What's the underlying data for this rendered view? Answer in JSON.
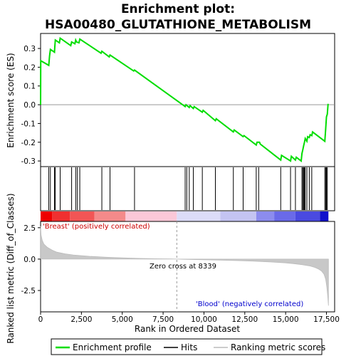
{
  "chart_data": {
    "type": "line",
    "title_line1": "Enrichment plot:",
    "title_line2": "HSA00480_GLUTATHIONE_METABOLISM",
    "es_panel": {
      "ylabel": "Enrichment score (ES)",
      "ylim": [
        -0.33,
        0.38
      ],
      "yticks": [
        0.3,
        0.2,
        0.1,
        0.0,
        -0.1,
        -0.2,
        -0.3
      ],
      "ytick_labels": [
        "0.3",
        "0.2",
        "0.1",
        "0.0",
        "-0.1",
        "-0.2",
        "-0.3"
      ],
      "series": [
        {
          "name": "Enrichment profile",
          "color": "#00dd00",
          "x": [
            0,
            10,
            500,
            550,
            600,
            850,
            870,
            900,
            1150,
            1200,
            1850,
            1900,
            2100,
            2150,
            2200,
            2350,
            2400,
            3700,
            3750,
            4200,
            4250,
            5700,
            5750,
            8850,
            8900,
            9100,
            9150,
            9350,
            9400,
            9900,
            9950,
            10700,
            10750,
            11800,
            11850,
            12400,
            12450,
            13200,
            13250,
            13400,
            13450,
            14700,
            14750,
            15300,
            15350,
            15600,
            15650,
            15950,
            16000,
            16050,
            16100,
            16150,
            16200,
            16300,
            16350,
            16450,
            16500,
            16600,
            16650,
            17400,
            17450,
            17500,
            17550,
            17600
          ],
          "y": [
            0.0,
            0.235,
            0.21,
            0.26,
            0.295,
            0.28,
            0.31,
            0.345,
            0.33,
            0.355,
            0.315,
            0.335,
            0.325,
            0.345,
            0.335,
            0.33,
            0.35,
            0.275,
            0.285,
            0.255,
            0.265,
            0.18,
            0.185,
            -0.01,
            0.0,
            -0.015,
            -0.005,
            -0.02,
            -0.01,
            -0.04,
            -0.03,
            -0.085,
            -0.075,
            -0.145,
            -0.135,
            -0.17,
            -0.165,
            -0.215,
            -0.2,
            -0.2,
            -0.21,
            -0.295,
            -0.27,
            -0.3,
            -0.275,
            -0.295,
            -0.28,
            -0.3,
            -0.26,
            -0.24,
            -0.22,
            -0.2,
            -0.18,
            -0.195,
            -0.17,
            -0.175,
            -0.16,
            -0.165,
            -0.145,
            -0.195,
            -0.13,
            -0.065,
            -0.05,
            0.005
          ]
        }
      ]
    },
    "hits_panel": {
      "hit_positions": [
        500,
        600,
        850,
        900,
        1200,
        1900,
        2150,
        2250,
        2400,
        3750,
        4250,
        5750,
        8850,
        8950,
        9100,
        9350,
        9900,
        10700,
        11800,
        12400,
        13200,
        13350,
        14700,
        15300,
        15600,
        16000,
        16050,
        16100,
        16150,
        16200,
        16300,
        16450,
        16600,
        17400,
        17450,
        17500,
        17550
      ]
    },
    "metric_panel": {
      "ylabel": "Ranked list metric (Diff_of_Classes)",
      "ylim": [
        -4.2,
        3.0
      ],
      "yticks": [
        2.5,
        0.0,
        -2.5
      ],
      "ytick_labels": [
        "2.5",
        "0.0",
        "-2.5"
      ],
      "xlabel": "Rank in Ordered Dataset",
      "xlim": [
        0,
        18000
      ],
      "xticks": [
        0,
        2500,
        5000,
        7500,
        10000,
        12500,
        15000,
        17500
      ],
      "xtick_labels": [
        "0",
        "2,500",
        "5,000",
        "7,500",
        "10,000",
        "12,500",
        "15,000",
        "17,500"
      ],
      "metric_curve": {
        "x": [
          0,
          30,
          100,
          200,
          400,
          700,
          1000,
          1500,
          2000,
          3000,
          4000,
          5000,
          6000,
          7000,
          8000,
          8339,
          9000,
          10000,
          11000,
          12000,
          13000,
          14000,
          15000,
          15500,
          16000,
          16500,
          16800,
          17000,
          17200,
          17350,
          17450,
          17520,
          17580,
          17620
        ],
        "y": [
          2.6,
          1.9,
          1.5,
          1.2,
          0.95,
          0.72,
          0.55,
          0.42,
          0.33,
          0.22,
          0.15,
          0.1,
          0.06,
          0.03,
          0.01,
          0.0,
          -0.02,
          -0.05,
          -0.08,
          -0.12,
          -0.16,
          -0.22,
          -0.3,
          -0.36,
          -0.44,
          -0.55,
          -0.66,
          -0.78,
          -0.95,
          -1.2,
          -1.6,
          -2.2,
          -3.0,
          -3.7
        ]
      },
      "zero_cross_label": "Zero cross at 8339",
      "zero_cross_x": 8339,
      "pos_label": "'Breast' (positively correlated)",
      "neg_label": "'Blood' (negatively correlated)",
      "pos_color": "#cc0000",
      "neg_color": "#0000cc"
    },
    "legend": [
      {
        "label": "Enrichment profile",
        "color": "#00dd00"
      },
      {
        "label": "Hits",
        "color": "#000000"
      },
      {
        "label": "Ranking metric scores",
        "color": "#bbbbbb"
      }
    ]
  }
}
